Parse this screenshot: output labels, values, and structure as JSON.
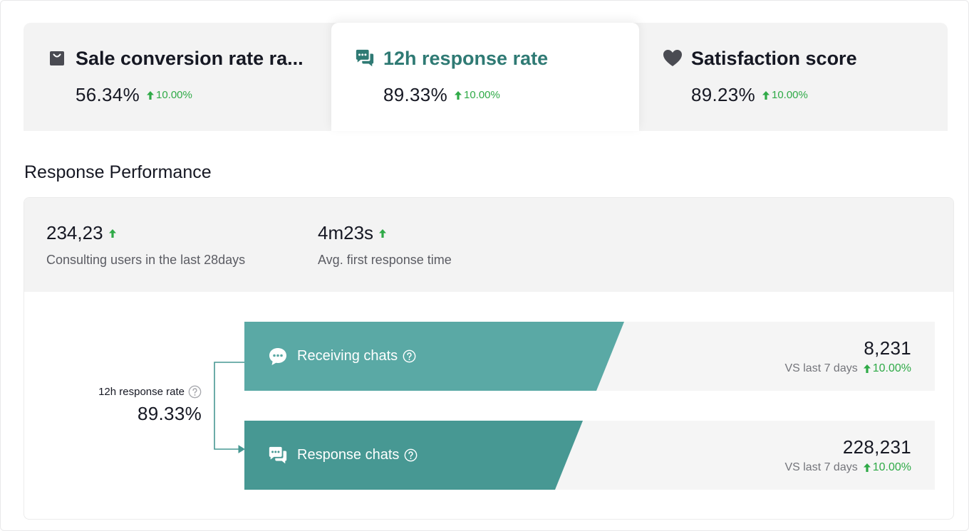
{
  "metric_tabs": [
    {
      "icon": "shopping-bag-icon",
      "title": "Sale conversion rate ra...",
      "value": "56.34%",
      "delta": "10.00%",
      "selected": false
    },
    {
      "icon": "chat-bubbles-icon",
      "title": "12h response rate",
      "value": "89.33%",
      "delta": "10.00%",
      "selected": true
    },
    {
      "icon": "heart-icon",
      "title": "Satisfaction score",
      "value": "89.23%",
      "delta": "10.00%",
      "selected": false
    }
  ],
  "section_title": "Response Performance",
  "summary": [
    {
      "value": "234,23",
      "label": "Consulting users in the last 28days",
      "trend": "up"
    },
    {
      "value": "4m23s",
      "label": "Avg. first response time",
      "trend": "up"
    }
  ],
  "funnel": {
    "rate_label": "12h response rate",
    "rate_value": "89.33%",
    "bars": [
      {
        "icon": "chat-bubble-icon",
        "label": "Receiving chats",
        "value": "8,231",
        "compare_label": "VS last 7 days",
        "delta": "10.00%",
        "fill": 0.55,
        "color": "#5aa9a5"
      },
      {
        "icon": "chat-bubbles-icon",
        "label": "Response chats",
        "value": "228,231",
        "compare_label": "VS last 7 days",
        "delta": "10.00%",
        "fill": 0.49,
        "color": "#479893"
      }
    ]
  },
  "colors": {
    "accent": "#2f7a74",
    "positive": "#2faa47",
    "tab_bg": "#f3f3f3"
  }
}
